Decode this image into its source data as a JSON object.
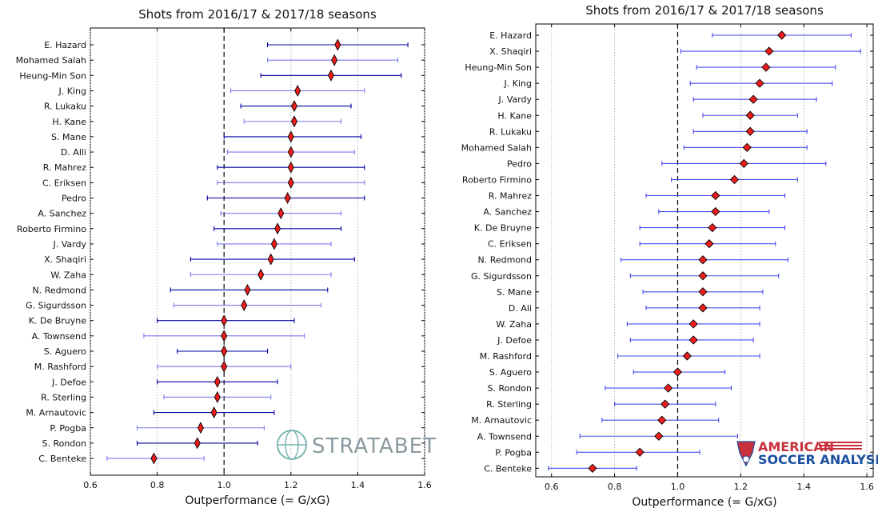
{
  "chart_data": [
    {
      "type": "scatter",
      "title": "Shots from 2016/17 & 2017/18 seasons",
      "xlabel": "Outperformance (= G/xG)",
      "ylabel": "",
      "xlim": [
        0.6,
        1.6
      ],
      "xticks": [
        "0.6",
        "0.8",
        "1.0",
        "1.2",
        "1.4",
        "1.6"
      ],
      "reference_line": 1.0,
      "marker": "diamond",
      "marker_color": "#ee1c1c",
      "errorbar_colors": [
        "#0000a0",
        "#7a7af0"
      ],
      "watermark": "STRATABET",
      "players": [
        {
          "name": "E. Hazard",
          "value": 1.34,
          "low": 1.13,
          "high": 1.55
        },
        {
          "name": "Mohamed Salah",
          "value": 1.33,
          "low": 1.13,
          "high": 1.52
        },
        {
          "name": "Heung-Min Son",
          "value": 1.32,
          "low": 1.11,
          "high": 1.53
        },
        {
          "name": "J. King",
          "value": 1.22,
          "low": 1.02,
          "high": 1.42
        },
        {
          "name": "R. Lukaku",
          "value": 1.21,
          "low": 1.05,
          "high": 1.38
        },
        {
          "name": "H. Kane",
          "value": 1.21,
          "low": 1.06,
          "high": 1.35
        },
        {
          "name": "S. Mane",
          "value": 1.2,
          "low": 1.0,
          "high": 1.41
        },
        {
          "name": "D. Alli",
          "value": 1.2,
          "low": 1.01,
          "high": 1.39
        },
        {
          "name": "R. Mahrez",
          "value": 1.2,
          "low": 0.98,
          "high": 1.42
        },
        {
          "name": "C. Eriksen",
          "value": 1.2,
          "low": 0.98,
          "high": 1.42
        },
        {
          "name": "Pedro",
          "value": 1.19,
          "low": 0.95,
          "high": 1.42
        },
        {
          "name": "A. Sanchez",
          "value": 1.17,
          "low": 0.99,
          "high": 1.35
        },
        {
          "name": "Roberto Firmino",
          "value": 1.16,
          "low": 0.97,
          "high": 1.35
        },
        {
          "name": "J. Vardy",
          "value": 1.15,
          "low": 0.98,
          "high": 1.32
        },
        {
          "name": "X. Shaqiri",
          "value": 1.14,
          "low": 0.9,
          "high": 1.39
        },
        {
          "name": "W. Zaha",
          "value": 1.11,
          "low": 0.9,
          "high": 1.32
        },
        {
          "name": "N. Redmond",
          "value": 1.07,
          "low": 0.84,
          "high": 1.31
        },
        {
          "name": "G. Sigurdsson",
          "value": 1.06,
          "low": 0.85,
          "high": 1.29
        },
        {
          "name": "K. De Bruyne",
          "value": 1.0,
          "low": 0.8,
          "high": 1.21
        },
        {
          "name": "A. Townsend",
          "value": 1.0,
          "low": 0.76,
          "high": 1.24
        },
        {
          "name": "S. Aguero",
          "value": 1.0,
          "low": 0.86,
          "high": 1.13
        },
        {
          "name": "M. Rashford",
          "value": 1.0,
          "low": 0.8,
          "high": 1.2
        },
        {
          "name": "J. Defoe",
          "value": 0.98,
          "low": 0.8,
          "high": 1.16
        },
        {
          "name": "R. Sterling",
          "value": 0.98,
          "low": 0.82,
          "high": 1.14
        },
        {
          "name": "M. Arnautovic",
          "value": 0.97,
          "low": 0.79,
          "high": 1.15
        },
        {
          "name": "P. Pogba",
          "value": 0.93,
          "low": 0.74,
          "high": 1.12
        },
        {
          "name": "S. Rondon",
          "value": 0.92,
          "low": 0.74,
          "high": 1.1
        },
        {
          "name": "C. Benteke",
          "value": 0.79,
          "low": 0.65,
          "high": 0.94
        }
      ]
    },
    {
      "type": "scatter",
      "title": "Shots from 2016/17 & 2017/18 seasons",
      "xlabel": "Outperformance (= G/xG)",
      "ylabel": "",
      "xlim": [
        0.55,
        1.62
      ],
      "xticks": [
        "0.6",
        "0.8",
        "1.0",
        "1.2",
        "1.4",
        "1.6"
      ],
      "reference_line": 1.0,
      "marker": "diamond",
      "marker_color": "#ee1c1c",
      "errorbar_colors": [
        "#4a4aee"
      ],
      "watermark_top": "AMERICAN",
      "watermark_bottom": "SOCCER ANALYSIS",
      "players": [
        {
          "name": "E. Hazard",
          "value": 1.33,
          "low": 1.11,
          "high": 1.55
        },
        {
          "name": "X. Shaqiri",
          "value": 1.29,
          "low": 1.01,
          "high": 1.58
        },
        {
          "name": "Heung-Min Son",
          "value": 1.28,
          "low": 1.06,
          "high": 1.5
        },
        {
          "name": "J. King",
          "value": 1.26,
          "low": 1.04,
          "high": 1.49
        },
        {
          "name": "J. Vardy",
          "value": 1.24,
          "low": 1.05,
          "high": 1.44
        },
        {
          "name": "H. Kane",
          "value": 1.23,
          "low": 1.08,
          "high": 1.38
        },
        {
          "name": "R. Lukaku",
          "value": 1.23,
          "low": 1.05,
          "high": 1.41
        },
        {
          "name": "Mohamed Salah",
          "value": 1.22,
          "low": 1.02,
          "high": 1.41
        },
        {
          "name": "Pedro",
          "value": 1.21,
          "low": 0.95,
          "high": 1.47
        },
        {
          "name": "Roberto Firmino",
          "value": 1.18,
          "low": 0.98,
          "high": 1.38
        },
        {
          "name": "R. Mahrez",
          "value": 1.12,
          "low": 0.9,
          "high": 1.34
        },
        {
          "name": "A. Sanchez",
          "value": 1.12,
          "low": 0.94,
          "high": 1.29
        },
        {
          "name": "K. De Bruyne",
          "value": 1.11,
          "low": 0.88,
          "high": 1.34
        },
        {
          "name": "C. Eriksen",
          "value": 1.1,
          "low": 0.88,
          "high": 1.31
        },
        {
          "name": "N. Redmond",
          "value": 1.08,
          "low": 0.82,
          "high": 1.35
        },
        {
          "name": "G. Sigurdsson",
          "value": 1.08,
          "low": 0.85,
          "high": 1.32
        },
        {
          "name": "S. Mane",
          "value": 1.08,
          "low": 0.89,
          "high": 1.27
        },
        {
          "name": "D. Ali",
          "value": 1.08,
          "low": 0.9,
          "high": 1.26
        },
        {
          "name": "W. Zaha",
          "value": 1.05,
          "low": 0.84,
          "high": 1.26
        },
        {
          "name": "J. Defoe",
          "value": 1.05,
          "low": 0.85,
          "high": 1.24
        },
        {
          "name": "M. Rashford",
          "value": 1.03,
          "low": 0.81,
          "high": 1.26
        },
        {
          "name": "S. Aguero",
          "value": 1.0,
          "low": 0.86,
          "high": 1.15
        },
        {
          "name": "S. Rondon",
          "value": 0.97,
          "low": 0.77,
          "high": 1.17
        },
        {
          "name": "R. Sterling",
          "value": 0.96,
          "low": 0.8,
          "high": 1.12
        },
        {
          "name": "M. Arnautovic",
          "value": 0.95,
          "low": 0.76,
          "high": 1.13
        },
        {
          "name": "A. Townsend",
          "value": 0.94,
          "low": 0.69,
          "high": 1.19
        },
        {
          "name": "P. Pogba",
          "value": 0.88,
          "low": 0.68,
          "high": 1.07
        },
        {
          "name": "C. Benteke",
          "value": 0.73,
          "low": 0.59,
          "high": 0.87
        }
      ]
    }
  ]
}
